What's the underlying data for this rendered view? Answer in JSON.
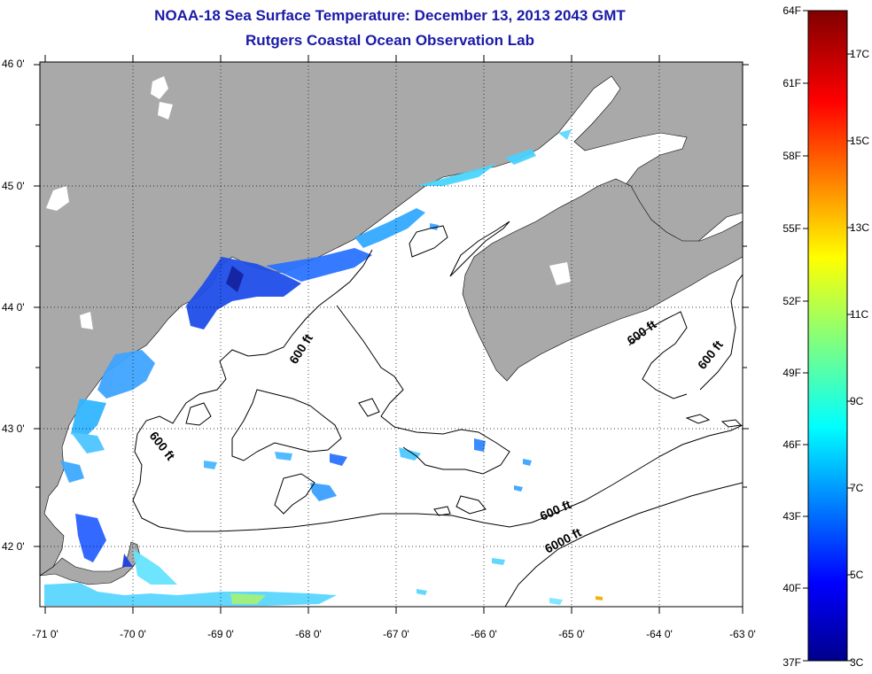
{
  "title": "NOAA-18 Sea Surface Temperature:  December 13, 2013 2043 GMT",
  "subtitle": "Rutgers Coastal Ocean Observation Lab",
  "map": {
    "lat_labels": [
      "46 0'",
      "45 0'",
      "44 0'",
      "43 0'",
      "42 0'"
    ],
    "lon_labels": [
      "-71 0'",
      "-70 0'",
      "-69 0'",
      "-68 0'",
      "-67 0'",
      "-66 0'",
      "-65 0'",
      "-64 0'",
      "-63 0'"
    ],
    "contour_labels": [
      "600 ft",
      "600 ft",
      "600 ft",
      "600 ft",
      "600 ft",
      "6000 ft"
    ],
    "colors": {
      "land": "#a9a9a9",
      "water": "#ffffff"
    }
  },
  "colorbar": {
    "f_labels": [
      "64F",
      "61F",
      "58F",
      "55F",
      "52F",
      "49F",
      "46F",
      "43F",
      "40F",
      "37F"
    ],
    "c_labels": [
      "17C",
      "15C",
      "13C",
      "11C",
      "9C",
      "7C",
      "5C",
      "3C"
    ],
    "colormap": "jet"
  }
}
